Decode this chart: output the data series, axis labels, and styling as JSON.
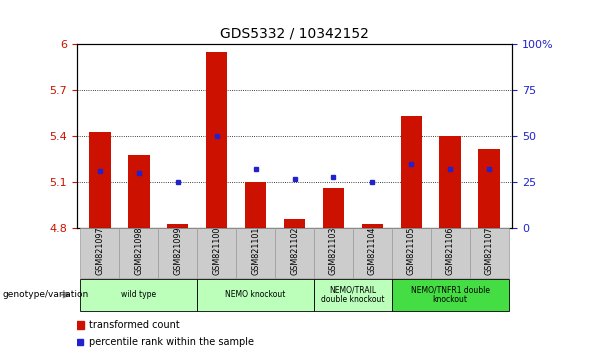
{
  "title": "GDS5332 / 10342152",
  "samples": [
    "GSM821097",
    "GSM821098",
    "GSM821099",
    "GSM821100",
    "GSM821101",
    "GSM821102",
    "GSM821103",
    "GSM821104",
    "GSM821105",
    "GSM821106",
    "GSM821107"
  ],
  "transformed_count": [
    5.43,
    5.28,
    4.83,
    5.95,
    5.1,
    4.86,
    5.06,
    4.83,
    5.53,
    5.4,
    5.32
  ],
  "percentile_rank": [
    31,
    30,
    25,
    50,
    32,
    27,
    28,
    25,
    35,
    32,
    32
  ],
  "bar_bottom": 4.8,
  "ylim_left": [
    4.8,
    6.0
  ],
  "ylim_right": [
    0,
    100
  ],
  "yticks_left": [
    4.8,
    5.1,
    5.4,
    5.7,
    6.0
  ],
  "yticks_right": [
    0,
    25,
    50,
    75,
    100
  ],
  "ytick_labels_left": [
    "4.8",
    "5.1",
    "5.4",
    "5.7",
    "6"
  ],
  "ytick_labels_right": [
    "0",
    "25",
    "50",
    "75",
    "100%"
  ],
  "dotted_lines": [
    5.1,
    5.4,
    5.7
  ],
  "bar_color": "#cc1100",
  "dot_color": "#2222cc",
  "groups": [
    {
      "label": "wild type",
      "start": 0,
      "end": 2,
      "color": "#bbffbb"
    },
    {
      "label": "NEMO knockout",
      "start": 3,
      "end": 5,
      "color": "#bbffbb"
    },
    {
      "label": "NEMO/TRAIL\ndouble knockout",
      "start": 6,
      "end": 7,
      "color": "#bbffbb"
    },
    {
      "label": "NEMO/TNFR1 double\nknockout",
      "start": 8,
      "end": 10,
      "color": "#44dd44"
    }
  ],
  "legend_bar_label": "transformed count",
  "legend_dot_label": "percentile rank within the sample",
  "genotype_label": "genotype/variation",
  "left_tick_color": "#cc1100",
  "right_tick_color": "#2222cc",
  "label_bg_color": "#cccccc",
  "label_border_color": "#999999"
}
